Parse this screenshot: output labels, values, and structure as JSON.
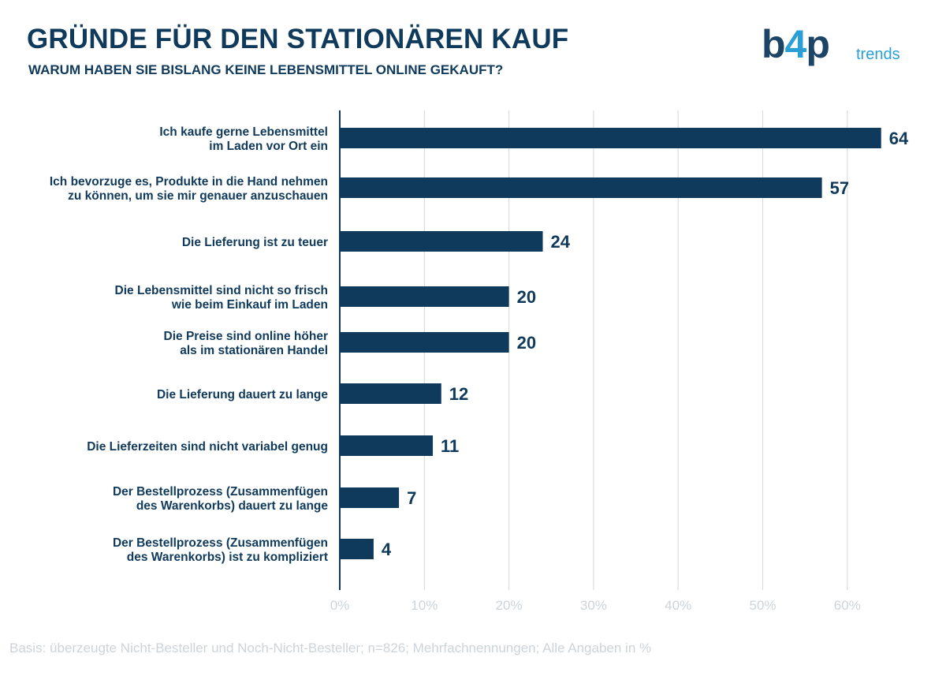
{
  "header": {
    "title": "GRÜNDE FÜR DEN STATIONÄREN KAUF",
    "subtitle": "WARUM HABEN SIE BISLANG KEINE LEBENSMITTEL ONLINE GEKAUFT?"
  },
  "logo": {
    "main_b": "b",
    "main_4": "4",
    "main_p": "p",
    "sub": "trends"
  },
  "colors": {
    "bar": "#0f3a5c",
    "grid": "#d9dcdf",
    "axis": "#0f3a5c",
    "tick": "#cdd4d9",
    "accent": "#2a9fd6"
  },
  "chart_data": {
    "type": "bar",
    "orientation": "horizontal",
    "title": "GRÜNDE FÜR DEN STATIONÄREN KAUF",
    "subtitle": "WARUM HABEN SIE BISLANG KEINE LEBENSMITTEL ONLINE GEKAUFT?",
    "categories": [
      [
        "Ich kaufe gerne Lebensmittel",
        "im Laden vor Ort ein"
      ],
      [
        "Ich bevorzuge es, Produkte in die Hand nehmen",
        "zu können, um sie mir genauer anzuschauen"
      ],
      [
        "Die Lieferung ist zu teuer"
      ],
      [
        "Die Lebensmittel sind nicht so frisch",
        "wie beim Einkauf im Laden"
      ],
      [
        "Die Preise sind online höher",
        "als im stationären Handel"
      ],
      [
        "Die Lieferung dauert zu lange"
      ],
      [
        "Die Lieferzeiten sind nicht variabel genug"
      ],
      [
        "Der Bestellprozess (Zusammenfügen",
        "des Warenkorbs) dauert zu lange"
      ],
      [
        "Der Bestellprozess (Zusammenfügen",
        "des Warenkorbs) ist zu kompliziert"
      ]
    ],
    "values": [
      64,
      57,
      24,
      20,
      20,
      12,
      11,
      7,
      4
    ],
    "xlim": [
      0,
      65
    ],
    "xticks": [
      0,
      10,
      20,
      30,
      40,
      50,
      60
    ],
    "xtick_labels": [
      "0%",
      "10%",
      "20%",
      "30%",
      "40%",
      "50%",
      "60%"
    ],
    "grid": true,
    "legend": "none"
  },
  "footnote": "Basis: überzeugte Nicht-Besteller und Noch-Nicht-Besteller; n=826; Mehrfachnennungen; Alle Angaben in %"
}
